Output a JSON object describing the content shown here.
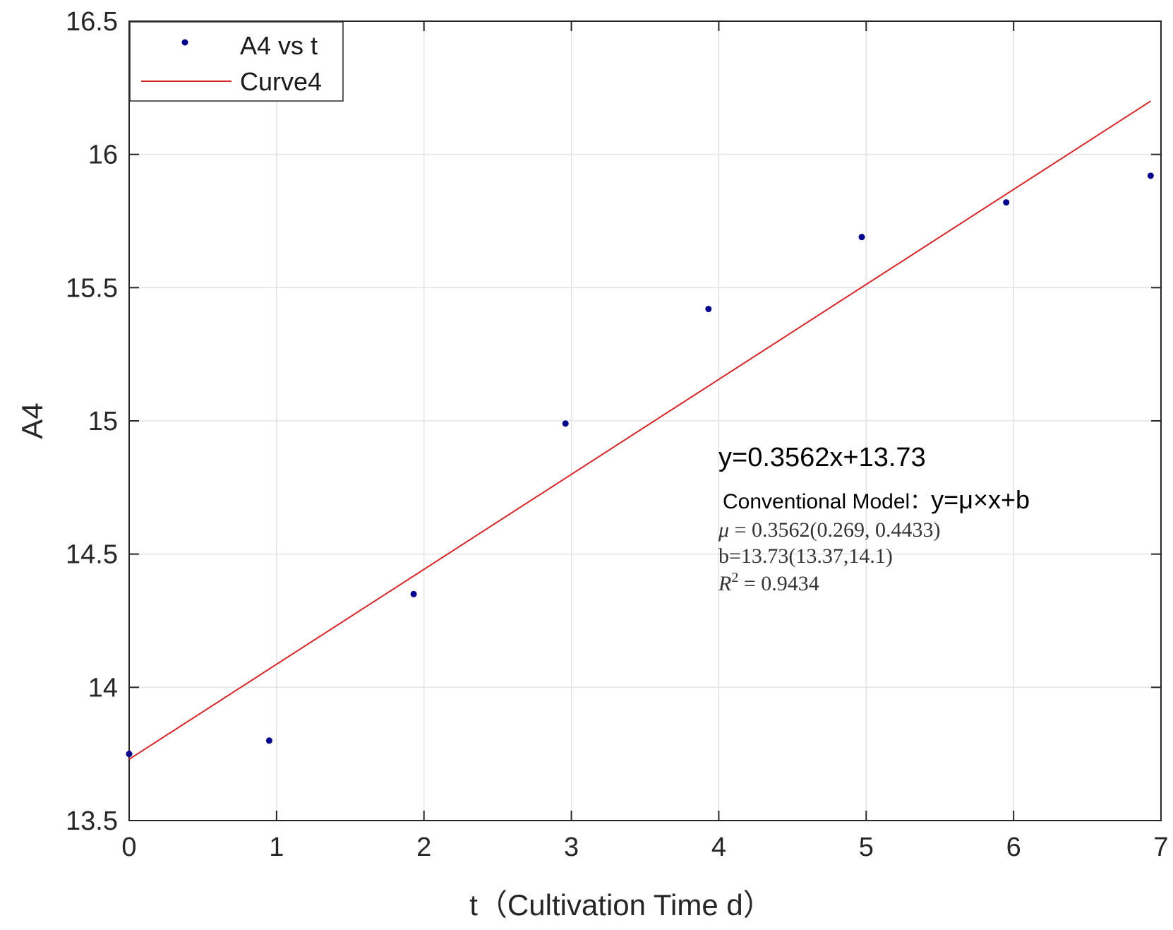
{
  "chart_data": {
    "type": "scatter",
    "xlabel": "t（Cultivation Time d）",
    "ylabel": "A4",
    "xlim": [
      0,
      7
    ],
    "ylim": [
      13.5,
      16.5
    ],
    "xticks": [
      "0",
      "1",
      "2",
      "3",
      "4",
      "5",
      "6",
      "7"
    ],
    "yticks": [
      "13.5",
      "14",
      "14.5",
      "15",
      "15.5",
      "16",
      "16.5"
    ],
    "grid": true,
    "legend_position": "top-left",
    "series": [
      {
        "name": "A4 vs t",
        "kind": "scatter",
        "color": "#00008b",
        "x": [
          0,
          0.95,
          1.93,
          2.96,
          3.93,
          4.97,
          5.95,
          6.93
        ],
        "y": [
          13.75,
          13.8,
          14.35,
          14.99,
          15.42,
          15.69,
          15.82,
          15.92
        ]
      },
      {
        "name": "Curve4",
        "kind": "line",
        "color": "#d62728",
        "x": [
          0,
          6.93
        ],
        "y": [
          13.73,
          16.2
        ]
      }
    ],
    "annotations": {
      "equation": "y=0.3562x+13.73",
      "model_prefix": "Conventional Model：",
      "model_formula": "y=μ×x+b",
      "mu_prefix": "μ",
      "mu_value": " = 0.3562(0.269, 0.4433)",
      "b_line": "b=13.73(13.37,14.1)",
      "r2_prefix": "R",
      "r2_sup": "2",
      "r2_value": " = 0.9434"
    }
  }
}
